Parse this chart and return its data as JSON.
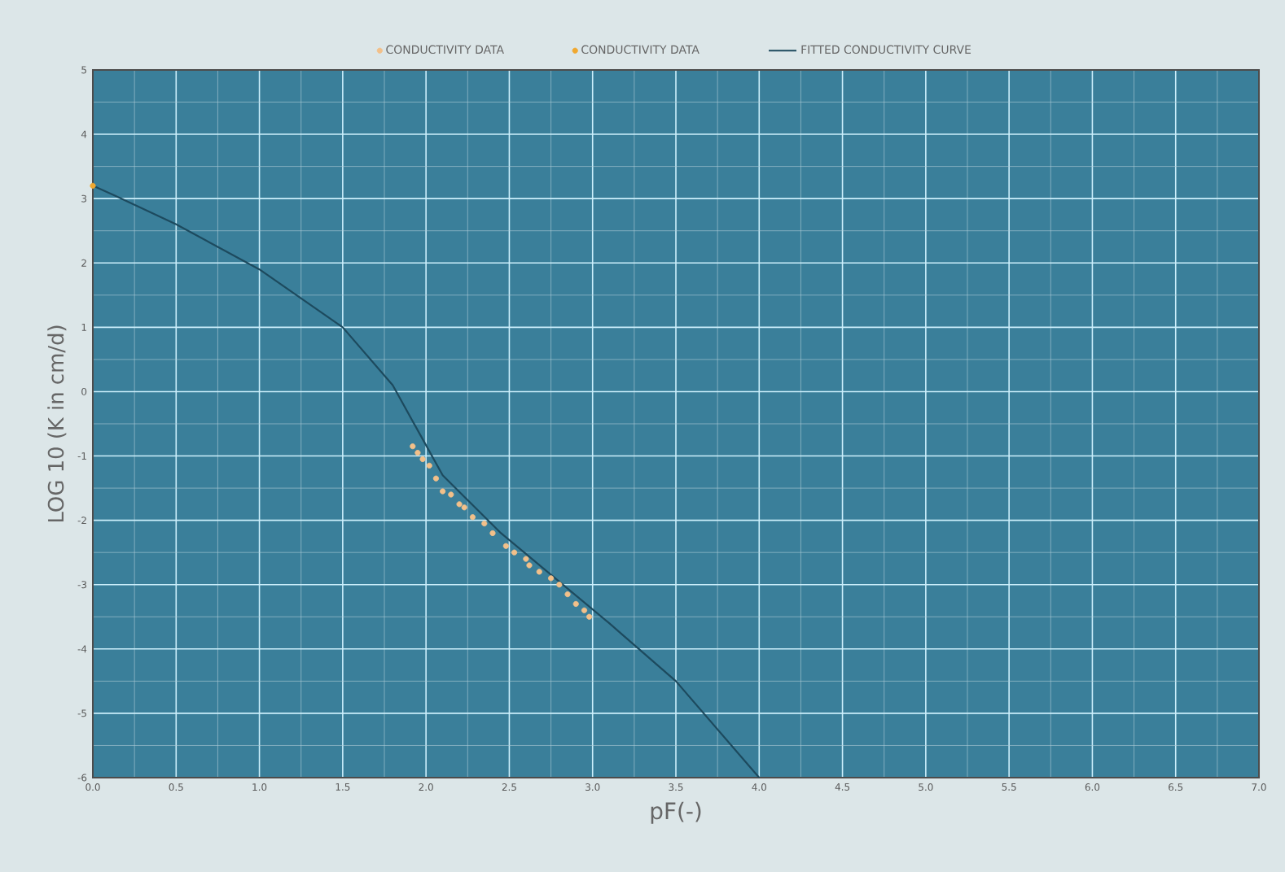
{
  "chart_data": {
    "type": "scatter",
    "xlabel": "pF(-)",
    "ylabel": "LOG 10 (K in cm/d)",
    "xlim": [
      0,
      7
    ],
    "ylim": [
      -6,
      5
    ],
    "xticks": [
      {
        "value": 0,
        "label": "0.0"
      },
      {
        "value": 0.5,
        "label": "0.5"
      },
      {
        "value": 1,
        "label": "1.0"
      },
      {
        "value": 1.5,
        "label": "1.5"
      },
      {
        "value": 2,
        "label": "2.0"
      },
      {
        "value": 2.5,
        "label": "2.5"
      },
      {
        "value": 3,
        "label": "3.0"
      },
      {
        "value": 3.5,
        "label": "3.5"
      },
      {
        "value": 4,
        "label": "4.0"
      },
      {
        "value": 4.5,
        "label": "4.5"
      },
      {
        "value": 5,
        "label": "5.0"
      },
      {
        "value": 5.5,
        "label": "5.5"
      },
      {
        "value": 6,
        "label": "6.0"
      },
      {
        "value": 6.5,
        "label": "6.5"
      },
      {
        "value": 7,
        "label": "7.0"
      }
    ],
    "yticks": [
      -6,
      -5,
      -4,
      -3,
      -2,
      -1,
      0,
      1,
      2,
      3,
      4,
      5
    ],
    "grid": true,
    "legend": "top",
    "series": [
      {
        "name": "CONDUCTIVITY DATA",
        "color": "#f2c08a",
        "marker": "circle",
        "x": [
          1.92,
          1.95,
          1.98,
          2.02,
          2.06,
          2.1,
          2.15,
          2.2,
          2.23,
          2.28,
          2.35,
          2.4,
          2.48,
          2.53,
          2.6,
          2.62,
          2.68,
          2.75,
          2.8,
          2.85,
          2.9,
          2.95,
          2.98
        ],
        "values": [
          -0.85,
          -0.95,
          -1.05,
          -1.15,
          -1.35,
          -1.55,
          -1.6,
          -1.75,
          -1.8,
          -1.95,
          -2.05,
          -2.2,
          -2.4,
          -2.5,
          -2.6,
          -2.7,
          -2.8,
          -2.9,
          -3.0,
          -3.15,
          -3.3,
          -3.4,
          -3.5
        ]
      },
      {
        "name": "CONDUCTIVITY DATA",
        "color": "#f0a830",
        "marker": "circle",
        "x": [
          0
        ],
        "values": [
          3.2
        ]
      },
      {
        "name": "FITTED CONDUCTIVITY CURVE",
        "type": "line",
        "marker": "none",
        "color": "#1d4a5e",
        "x": [
          0,
          0.13,
          0.5,
          1.0,
          1.5,
          1.8,
          1.95,
          2.1,
          2.45,
          3.1,
          3.5,
          4.0
        ],
        "values": [
          3.2,
          3.05,
          2.6,
          1.9,
          1.0,
          0.1,
          -0.6,
          -1.3,
          -2.2,
          -3.6,
          -4.5,
          -6
        ]
      }
    ]
  }
}
